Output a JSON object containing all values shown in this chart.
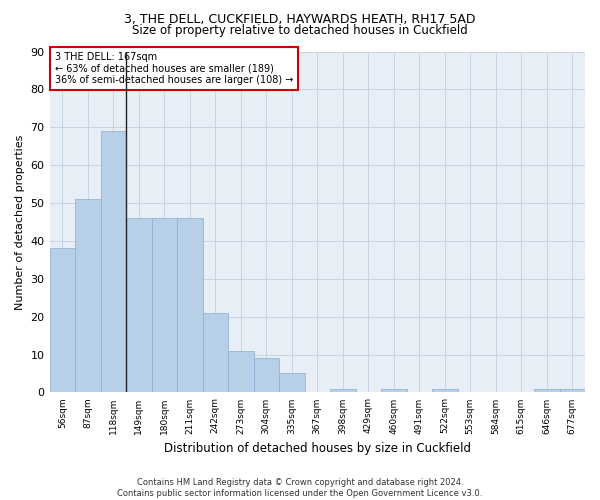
{
  "title": "3, THE DELL, CUCKFIELD, HAYWARDS HEATH, RH17 5AD",
  "subtitle": "Size of property relative to detached houses in Cuckfield",
  "xlabel": "Distribution of detached houses by size in Cuckfield",
  "ylabel": "Number of detached properties",
  "categories": [
    "56sqm",
    "87sqm",
    "118sqm",
    "149sqm",
    "180sqm",
    "211sqm",
    "242sqm",
    "273sqm",
    "304sqm",
    "335sqm",
    "367sqm",
    "398sqm",
    "429sqm",
    "460sqm",
    "491sqm",
    "522sqm",
    "553sqm",
    "584sqm",
    "615sqm",
    "646sqm",
    "677sqm"
  ],
  "values": [
    38,
    51,
    69,
    46,
    46,
    46,
    21,
    11,
    9,
    5,
    0,
    1,
    0,
    1,
    0,
    1,
    0,
    0,
    0,
    1,
    1
  ],
  "bar_color": "#b8cfe8",
  "bar_edge_color": "#8aafd4",
  "grid_color": "#c8d4e4",
  "background_color": "#e8eef6",
  "annotation_line1": "3 THE DELL: 167sqm",
  "annotation_line2": "← 63% of detached houses are smaller (189)",
  "annotation_line3": "36% of semi-detached houses are larger (108) →",
  "annotation_box_color": "#ffffff",
  "annotation_box_edge_color": "#cc0000",
  "vline_x": 2.5,
  "ylim": [
    0,
    90
  ],
  "yticks": [
    0,
    10,
    20,
    30,
    40,
    50,
    60,
    70,
    80,
    90
  ],
  "title_fontsize": 9,
  "subtitle_fontsize": 8.5,
  "footer": "Contains HM Land Registry data © Crown copyright and database right 2024.\nContains public sector information licensed under the Open Government Licence v3.0."
}
